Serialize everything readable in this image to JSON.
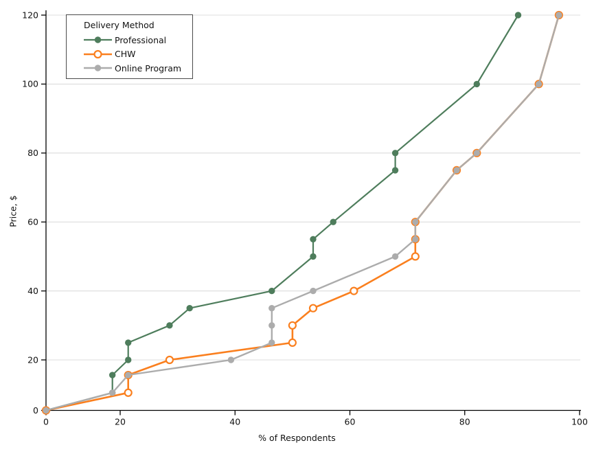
{
  "chart_data": {
    "type": "line",
    "title": "",
    "xlabel": "% of Respondents",
    "ylabel": "Price, $",
    "xlim": [
      0,
      100
    ],
    "ylim": [
      0,
      120
    ],
    "x_ticks": [
      0,
      20,
      40,
      60,
      80,
      100
    ],
    "y_ticks": [
      0,
      20,
      40,
      60,
      80,
      100,
      120
    ],
    "grid": "horizontal-only",
    "gridline_color": "#dcdcdc",
    "axis_color": "#000000",
    "legend": {
      "title": "Delivery Method",
      "position": "upper-left"
    },
    "series": [
      {
        "name": "Professional",
        "color": "#4e7d5c",
        "marker": "filled-circle",
        "points": [
          [
            0,
            0
          ],
          [
            17.9,
            7
          ],
          [
            17.9,
            14
          ],
          [
            21.4,
            20
          ],
          [
            21.4,
            25
          ],
          [
            28.6,
            30
          ],
          [
            32.1,
            35
          ],
          [
            46.4,
            40
          ],
          [
            53.6,
            50
          ],
          [
            53.6,
            55
          ],
          [
            57.1,
            60
          ],
          [
            67.9,
            75
          ],
          [
            67.9,
            80
          ],
          [
            82.1,
            100
          ],
          [
            89.3,
            120
          ]
        ]
      },
      {
        "name": "CHW",
        "color": "#fa7f1e",
        "marker": "open-circle",
        "points": [
          [
            0,
            0
          ],
          [
            21.4,
            7
          ],
          [
            21.4,
            14
          ],
          [
            28.6,
            20
          ],
          [
            50,
            25
          ],
          [
            50,
            30
          ],
          [
            53.6,
            35
          ],
          [
            60.7,
            40
          ],
          [
            71.4,
            50
          ],
          [
            71.4,
            55
          ],
          [
            71.4,
            60
          ],
          [
            78.6,
            75
          ],
          [
            82.1,
            80
          ],
          [
            92.9,
            100
          ],
          [
            96.4,
            120
          ]
        ]
      },
      {
        "name": "Online Program",
        "color": "#acacac",
        "marker": "filled-circle",
        "points": [
          [
            0,
            0
          ],
          [
            17.9,
            7
          ],
          [
            21.4,
            14
          ],
          [
            39.3,
            20
          ],
          [
            46.4,
            25
          ],
          [
            46.4,
            30
          ],
          [
            46.4,
            35
          ],
          [
            53.6,
            40
          ],
          [
            67.9,
            50
          ],
          [
            71.4,
            55
          ],
          [
            71.4,
            60
          ],
          [
            78.6,
            75
          ],
          [
            82.1,
            80
          ],
          [
            92.9,
            100
          ],
          [
            96.4,
            120
          ]
        ]
      }
    ]
  }
}
